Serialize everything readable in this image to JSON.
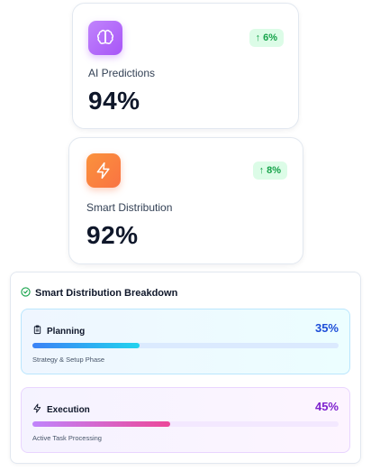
{
  "stats": [
    {
      "icon": "brain-icon",
      "trend": "6%",
      "label": "AI Predictions",
      "value": "94%"
    },
    {
      "icon": "lightning-icon",
      "trend": "8%",
      "label": "Smart Distribution",
      "value": "92%"
    }
  ],
  "breakdown": {
    "title": "Smart Distribution Breakdown",
    "phases": [
      {
        "icon": "clipboard-icon",
        "name": "Planning",
        "percent_label": "35%",
        "progress": 0.35,
        "subtitle": "Strategy & Setup Phase"
      },
      {
        "icon": "lightning-icon",
        "name": "Execution",
        "percent_label": "45%",
        "progress": 0.45,
        "subtitle": "Active Task Processing"
      }
    ]
  },
  "colors": {
    "trend_green": "#16a34a",
    "planning_accent": "#1d4ed8",
    "execution_accent": "#7e22ce",
    "ai_icon_bg": "#a855f7",
    "smart_icon_bg": "#f97343"
  }
}
